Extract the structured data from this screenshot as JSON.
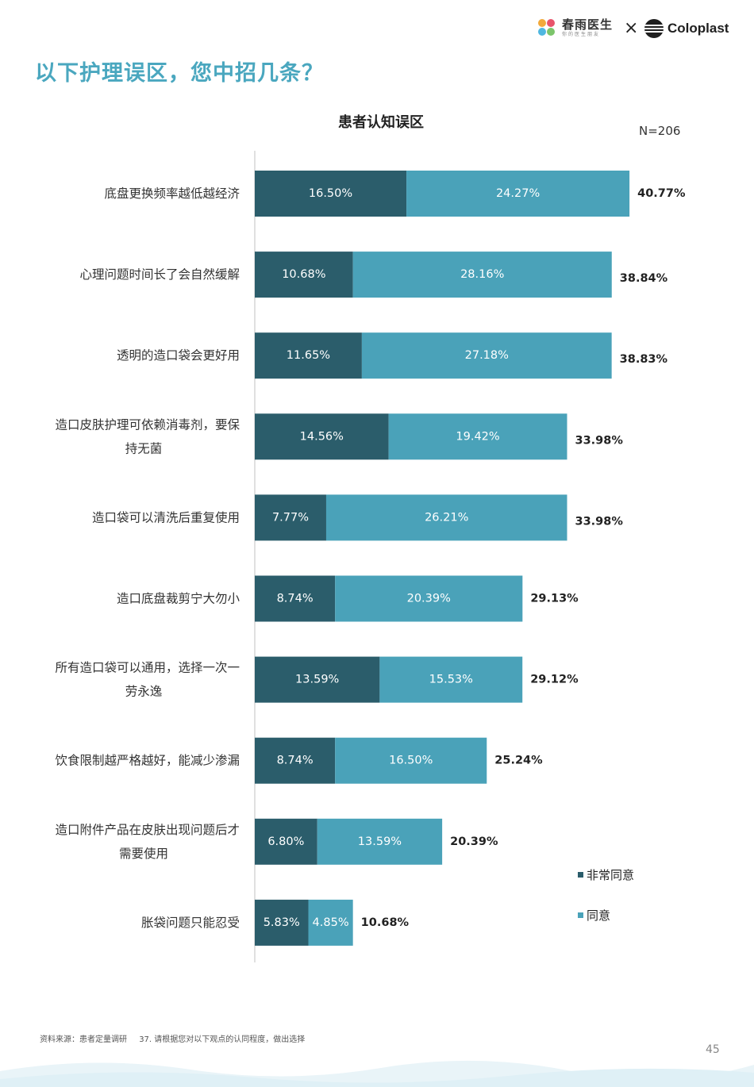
{
  "header": {
    "brand1_name": "春雨医生",
    "brand1_slogan": "你的医生朋友",
    "separator": "×",
    "brand2_name": "Coloplast"
  },
  "page_title": "以下护理误区，您中招几条？",
  "chart_data": {
    "type": "bar",
    "orientation": "horizontal",
    "stacked": true,
    "title": "患者认知误区",
    "sample_size": "N=206",
    "xlim": [
      0,
      45
    ],
    "categories": [
      "底盘更换频率越低越经济",
      "心理问题时间长了会自然缓解",
      "透明的造口袋会更好用",
      "造口皮肤护理可依赖消毒剂，要保持无菌",
      "造口袋可以清洗后重复使用",
      "造口底盘裁剪宁大勿小",
      "所有造口袋可以通用，选择一次一劳永逸",
      "饮食限制越严格越好，能减少渗漏",
      "造口附件产品在皮肤出现问题后才需要使用",
      "胀袋问题只能忍受"
    ],
    "category_lines": [
      [
        "底盘更换频率越低越经济"
      ],
      [
        "心理问题时间长了会自然缓解"
      ],
      [
        "透明的造口袋会更好用"
      ],
      [
        "造口皮肤护理可依赖消毒剂，要保",
        "持无菌"
      ],
      [
        "造口袋可以清洗后重复使用"
      ],
      [
        "造口底盘裁剪宁大勿小"
      ],
      [
        "所有造口袋可以通用，选择一次一",
        "劳永逸"
      ],
      [
        "饮食限制越严格越好，能减少渗漏"
      ],
      [
        "造口附件产品在皮肤出现问题后才",
        "需要使用"
      ],
      [
        "胀袋问题只能忍受"
      ]
    ],
    "series": [
      {
        "name": "非常同意",
        "color": "#2b5d6b",
        "values": [
          16.5,
          10.68,
          11.65,
          14.56,
          7.77,
          8.74,
          13.59,
          8.74,
          6.8,
          5.83
        ],
        "labels": [
          "16.50%",
          "10.68%",
          "11.65%",
          "14.56%",
          "7.77%",
          "8.74%",
          "13.59%",
          "8.74%",
          "6.80%",
          "5.83%"
        ]
      },
      {
        "name": "同意",
        "color": "#4aa2b9",
        "values": [
          24.27,
          28.16,
          27.18,
          19.42,
          26.21,
          20.39,
          15.53,
          16.5,
          13.59,
          4.85
        ],
        "labels": [
          "24.27%",
          "28.16%",
          "27.18%",
          "19.42%",
          "26.21%",
          "20.39%",
          "15.53%",
          "16.50%",
          "13.59%",
          "4.85%"
        ]
      }
    ],
    "totals": [
      40.77,
      38.84,
      38.83,
      33.98,
      33.98,
      29.13,
      29.12,
      25.24,
      20.39,
      10.68
    ],
    "total_labels": [
      "40.77%",
      "38.84%",
      "38.83%",
      "33.98%",
      "33.98%",
      "29.13%",
      "29.12%",
      "25.24%",
      "20.39%",
      "10.68%"
    ],
    "legend_position": "bottom-right",
    "grid": false
  },
  "legend": {
    "item1": "非常同意",
    "item2": "同意"
  },
  "footer": {
    "source": "资料来源：患者定量调研",
    "question": "37. 请根据您对以下观点的认同程度，做出选择",
    "page_number": "45"
  }
}
